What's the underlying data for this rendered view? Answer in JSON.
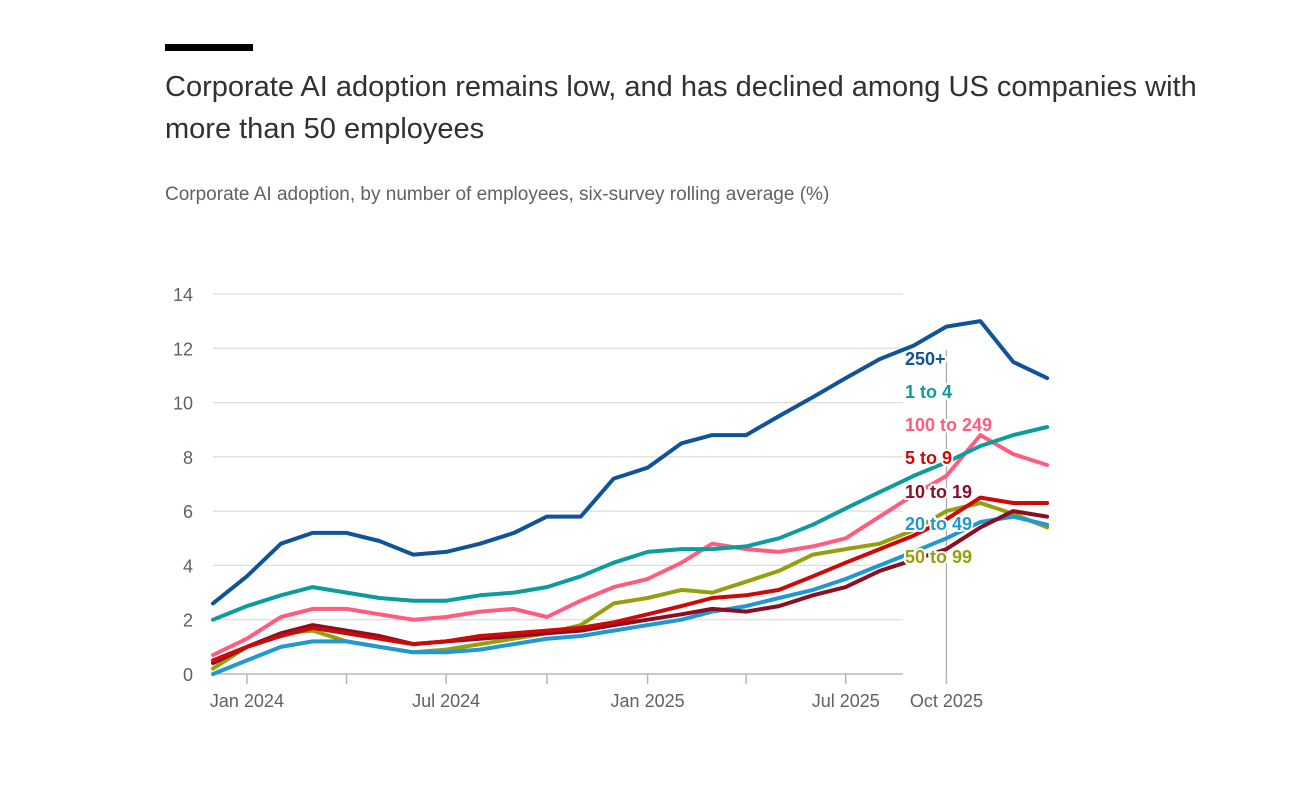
{
  "title": "Corporate AI adoption remains low, and has declined among US companies with more than 50 employees",
  "subtitle": "Corporate AI adoption, by number of employees, six-survey rolling average (%)",
  "chart_data": {
    "type": "line",
    "ylim": [
      0,
      14
    ],
    "yticks": [
      0,
      2,
      4,
      6,
      8,
      10,
      12,
      14
    ],
    "xlim": [
      "2023-12-01",
      "2026-01-10"
    ],
    "xtick_labels": [
      {
        "date": "2024-01-01",
        "label": "Jan 2024"
      },
      {
        "date": "2024-07-01",
        "label": "Jul 2024"
      },
      {
        "date": "2025-01-01",
        "label": "Jan 2025"
      },
      {
        "date": "2025-07-01",
        "label": "Jul 2025"
      },
      {
        "date": "2025-10-01",
        "label": "Oct 2025"
      }
    ],
    "xtick_marks": [
      "2024-04-01",
      "2024-10-01",
      "2025-04-01"
    ],
    "grid": true,
    "x": [
      "2023-12-01",
      "2024-01-01",
      "2024-02-01",
      "2024-03-01",
      "2024-04-01",
      "2024-05-01",
      "2024-06-01",
      "2024-07-01",
      "2024-08-01",
      "2024-09-01",
      "2024-10-01",
      "2024-11-01",
      "2024-12-01",
      "2025-01-01",
      "2025-02-01",
      "2025-03-01",
      "2025-04-01",
      "2025-05-01",
      "2025-06-01",
      "2025-07-01",
      "2025-08-01",
      "2025-09-01",
      "2025-10-01",
      "2025-11-01",
      "2025-12-01",
      "2026-01-01"
    ],
    "series": [
      {
        "name": "250+",
        "color": "#0f5499",
        "values": [
          2.6,
          3.6,
          4.8,
          5.2,
          5.2,
          4.9,
          4.4,
          4.5,
          4.8,
          5.2,
          5.8,
          5.8,
          7.2,
          7.6,
          8.5,
          8.8,
          8.8,
          9.5,
          10.2,
          10.9,
          11.6,
          12.1,
          12.8,
          13.0,
          11.5,
          10.9
        ]
      },
      {
        "name": "1 to 4",
        "color": "#0d9c9e",
        "values": [
          2.0,
          2.5,
          2.9,
          3.2,
          3.0,
          2.8,
          2.7,
          2.7,
          2.9,
          3.0,
          3.2,
          3.6,
          4.1,
          4.5,
          4.6,
          4.6,
          4.7,
          5.0,
          5.5,
          6.1,
          6.7,
          7.3,
          7.8,
          8.4,
          8.8,
          9.1
        ]
      },
      {
        "name": "100 to 249",
        "color": "#ff5c80",
        "values": [
          0.7,
          1.3,
          2.1,
          2.4,
          2.4,
          2.2,
          2.0,
          2.1,
          2.3,
          2.4,
          2.1,
          2.7,
          3.2,
          3.5,
          4.1,
          4.8,
          4.6,
          4.5,
          4.7,
          5.0,
          5.8,
          6.6,
          7.3,
          8.8,
          8.1,
          7.7
        ]
      },
      {
        "name": "5 to 9",
        "color": "#cc0a0a",
        "values": [
          0.5,
          1.0,
          1.4,
          1.7,
          1.5,
          1.3,
          1.1,
          1.2,
          1.4,
          1.5,
          1.6,
          1.7,
          1.9,
          2.2,
          2.5,
          2.8,
          2.9,
          3.1,
          3.6,
          4.1,
          4.6,
          5.1,
          5.7,
          6.5,
          6.3,
          6.3
        ]
      },
      {
        "name": "10 to 19",
        "color": "#8a0f24",
        "values": [
          0.4,
          1.0,
          1.5,
          1.8,
          1.6,
          1.4,
          1.1,
          1.2,
          1.3,
          1.4,
          1.5,
          1.6,
          1.8,
          2.0,
          2.2,
          2.4,
          2.3,
          2.5,
          2.9,
          3.2,
          3.8,
          4.2,
          4.6,
          5.4,
          6.0,
          5.8
        ]
      },
      {
        "name": "20 to 49",
        "color": "#1f98d4",
        "values": [
          0.0,
          0.5,
          1.0,
          1.2,
          1.2,
          1.0,
          0.8,
          0.8,
          0.9,
          1.1,
          1.3,
          1.4,
          1.6,
          1.8,
          2.0,
          2.3,
          2.5,
          2.8,
          3.1,
          3.5,
          4.0,
          4.5,
          5.0,
          5.6,
          5.8,
          5.5
        ]
      },
      {
        "name": "50 to 99",
        "color": "#96a00f",
        "values": [
          0.2,
          1.0,
          1.5,
          1.6,
          1.2,
          1.0,
          0.8,
          0.9,
          1.1,
          1.3,
          1.5,
          1.8,
          2.6,
          2.8,
          3.1,
          3.0,
          3.4,
          3.8,
          4.4,
          4.6,
          4.8,
          5.3,
          6.0,
          6.3,
          5.9,
          5.4
        ]
      }
    ]
  }
}
